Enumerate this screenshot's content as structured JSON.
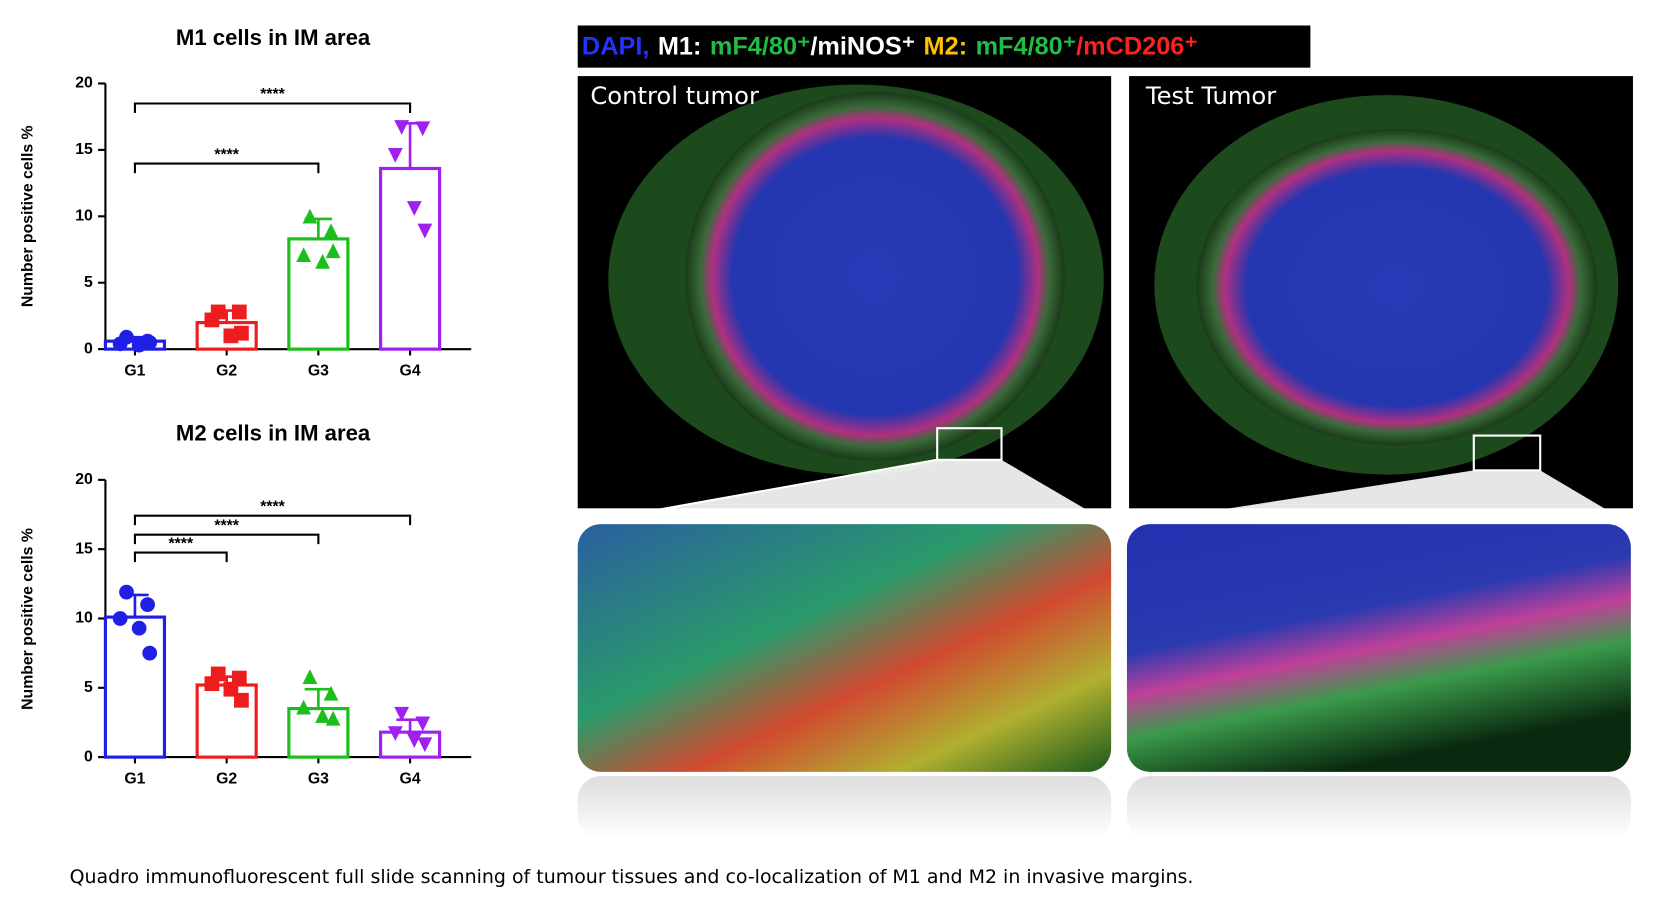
{
  "chart_data": [
    {
      "type": "bar",
      "title": "M1 cells in IM area",
      "y_label": "Number positive cells %",
      "categories": [
        "G1",
        "G2",
        "G3",
        "G4"
      ],
      "values": [
        0.6,
        2.0,
        8.3,
        13.6
      ],
      "errors": [
        0.3,
        0.9,
        1.5,
        3.4
      ],
      "points": [
        [
          0.9,
          0.6,
          0.4,
          0.3,
          0.5
        ],
        [
          2.8,
          2.8,
          2.2,
          1.0,
          1.2
        ],
        [
          9.9,
          8.8,
          7.0,
          6.5,
          7.3
        ],
        [
          16.8,
          16.7,
          14.7,
          10.7,
          9.0
        ]
      ],
      "colors": [
        "#1f1fe6",
        "#ee1c1c",
        "#1cbe1c",
        "#a020f0"
      ],
      "markers": [
        "circle",
        "square",
        "triangle-up",
        "triangle-down"
      ],
      "ylim": [
        0,
        20
      ],
      "yticks": [
        0,
        5,
        10,
        15,
        20
      ],
      "comparisons": [
        {
          "label": "****",
          "from": "G1",
          "to": "G3"
        },
        {
          "label": "****",
          "from": "G1",
          "to": "G4"
        }
      ]
    },
    {
      "type": "bar",
      "title": "M2 cells in IM area",
      "y_label": "Number positive cells %",
      "categories": [
        "G1",
        "G2",
        "G3",
        "G4"
      ],
      "values": [
        10.1,
        5.2,
        3.5,
        1.8
      ],
      "errors": [
        1.6,
        0.6,
        1.4,
        0.9
      ],
      "points": [
        [
          11.9,
          11.0,
          10.0,
          9.3,
          7.5
        ],
        [
          6.0,
          5.7,
          5.3,
          4.9,
          4.1
        ],
        [
          5.7,
          4.5,
          3.5,
          2.9,
          2.7
        ],
        [
          3.2,
          2.5,
          1.8,
          1.3,
          1.0
        ]
      ],
      "colors": [
        "#1f1fe6",
        "#ee1c1c",
        "#1cbe1c",
        "#a020f0"
      ],
      "markers": [
        "circle",
        "square",
        "triangle-up",
        "triangle-down"
      ],
      "ylim": [
        0,
        20
      ],
      "yticks": [
        0,
        5,
        10,
        15,
        20
      ],
      "comparisons": [
        {
          "label": "****",
          "from": "G1",
          "to": "G2"
        },
        {
          "label": "****",
          "from": "G1",
          "to": "G3"
        },
        {
          "label": "****",
          "from": "G1",
          "to": "G4"
        }
      ]
    }
  ],
  "legend_header": [
    {
      "text": "DAPI,",
      "color": "#2233ff"
    },
    {
      "text": "M1:",
      "color": "#ffffff"
    },
    {
      "text": "mF4/80⁺",
      "color": "#22bb44"
    },
    {
      "text": "/miNOS⁺",
      "color": "#ffffff"
    },
    {
      "text": "M2:",
      "color": "#ffc000"
    },
    {
      "text": "mF4/80⁺",
      "color": "#22bb44"
    },
    {
      "text": "/mCD206⁺",
      "color": "#ff2020"
    }
  ],
  "image_labels": [
    "Control tumor",
    "Test Tumor"
  ],
  "caption": "Quadro immunofluorescent full slide scanning of tumour tissues and co-localization of M1 and M2 in invasive margins."
}
